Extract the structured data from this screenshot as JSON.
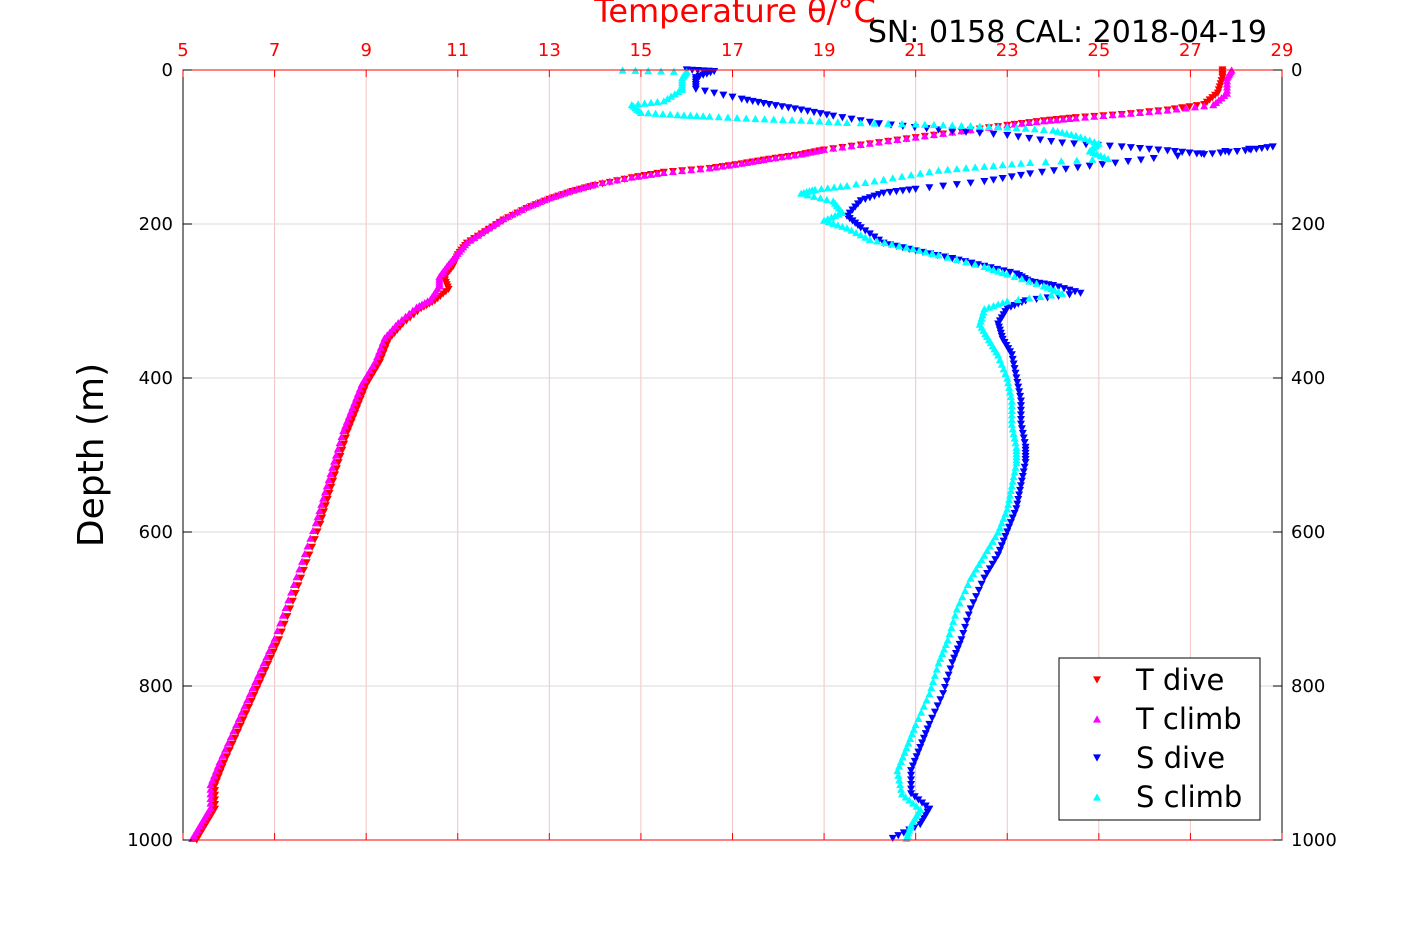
{
  "chart_data": {
    "type": "scatter",
    "title": "Temperature θ/°C",
    "subtitle": "SN: 0158  CAL: 2018-04-19",
    "xlabel": "Temperature θ/°C",
    "ylabel": "Depth (m)",
    "xlim": [
      5,
      29
    ],
    "ylim": [
      0,
      1000
    ],
    "xticks": [
      "5",
      "7",
      "9",
      "11",
      "13",
      "15",
      "17",
      "19",
      "21",
      "23",
      "25",
      "27",
      "29"
    ],
    "yticks": [
      "0",
      "200",
      "400",
      "600",
      "800",
      "1000"
    ],
    "grid": true,
    "legend_position": "bottom-right",
    "colors": {
      "axis_top": "#ff0000",
      "axis_frame": "#000000",
      "grid": "#d9d9d9",
      "grid_vertical": "#f2c4c4"
    },
    "series": [
      {
        "name": "T dive",
        "marker": "triangle-down",
        "color": "#ff0000",
        "points": [
          [
            27.7,
            0
          ],
          [
            27.7,
            10
          ],
          [
            27.6,
            30
          ],
          [
            27.3,
            45
          ],
          [
            26.5,
            52
          ],
          [
            25.5,
            58
          ],
          [
            24.5,
            62
          ],
          [
            23.8,
            66
          ],
          [
            23,
            72
          ],
          [
            22,
            80
          ],
          [
            21,
            88
          ],
          [
            20,
            96
          ],
          [
            19,
            104
          ],
          [
            18.5,
            110
          ],
          [
            17.8,
            116
          ],
          [
            17.2,
            122
          ],
          [
            16.5,
            128
          ],
          [
            15.5,
            133
          ],
          [
            14.8,
            140
          ],
          [
            14,
            150
          ],
          [
            13.5,
            158
          ],
          [
            13,
            168
          ],
          [
            12.5,
            180
          ],
          [
            12,
            195
          ],
          [
            11.6,
            210
          ],
          [
            11.2,
            225
          ],
          [
            11,
            240
          ],
          [
            10.9,
            255
          ],
          [
            10.7,
            270
          ],
          [
            10.8,
            285
          ],
          [
            10.5,
            300
          ],
          [
            10.2,
            310
          ],
          [
            9.8,
            330
          ],
          [
            9.5,
            350
          ],
          [
            9.3,
            380
          ],
          [
            9,
            410
          ],
          [
            8.8,
            440
          ],
          [
            8.6,
            470
          ],
          [
            8.4,
            510
          ],
          [
            8.2,
            550
          ],
          [
            8,
            590
          ],
          [
            7.7,
            640
          ],
          [
            7.4,
            690
          ],
          [
            7.1,
            740
          ],
          [
            6.8,
            780
          ],
          [
            6.5,
            820
          ],
          [
            6.2,
            860
          ],
          [
            5.9,
            900
          ],
          [
            5.7,
            930
          ],
          [
            5.7,
            960
          ],
          [
            5.5,
            980
          ],
          [
            5.3,
            1000
          ]
        ]
      },
      {
        "name": "T climb",
        "marker": "triangle-up",
        "color": "#ff00ff",
        "points": [
          [
            27.9,
            0
          ],
          [
            27.8,
            10
          ],
          [
            27.8,
            30
          ],
          [
            27.5,
            45
          ],
          [
            26.5,
            52
          ],
          [
            25.5,
            57
          ],
          [
            24.5,
            62
          ],
          [
            23.8,
            66
          ],
          [
            23,
            71
          ],
          [
            22,
            79
          ],
          [
            21,
            87
          ],
          [
            20,
            95
          ],
          [
            19,
            103
          ],
          [
            18.5,
            109
          ],
          [
            17.8,
            115
          ],
          [
            17.2,
            121
          ],
          [
            16.5,
            127
          ],
          [
            15.5,
            133
          ],
          [
            14.8,
            139
          ],
          [
            14,
            148
          ],
          [
            13.5,
            156
          ],
          [
            13,
            166
          ],
          [
            12.5,
            178
          ],
          [
            12,
            193
          ],
          [
            11.6,
            208
          ],
          [
            11.2,
            224
          ],
          [
            11,
            238
          ],
          [
            10.8,
            252
          ],
          [
            10.6,
            268
          ],
          [
            10.6,
            280
          ],
          [
            10.4,
            298
          ],
          [
            10.1,
            308
          ],
          [
            9.7,
            328
          ],
          [
            9.4,
            348
          ],
          [
            9.2,
            378
          ],
          [
            8.9,
            408
          ],
          [
            8.7,
            438
          ],
          [
            8.5,
            468
          ],
          [
            8.3,
            508
          ],
          [
            8.1,
            548
          ],
          [
            7.9,
            588
          ],
          [
            7.6,
            638
          ],
          [
            7.3,
            688
          ],
          [
            7,
            738
          ],
          [
            6.7,
            778
          ],
          [
            6.4,
            818
          ],
          [
            6.1,
            858
          ],
          [
            5.8,
            898
          ],
          [
            5.6,
            928
          ],
          [
            5.6,
            958
          ],
          [
            5.4,
            978
          ],
          [
            5.2,
            998
          ]
        ]
      },
      {
        "name": "S dive",
        "marker": "triangle-down",
        "color": "#0000ff",
        "points": [
          [
            16,
            0
          ],
          [
            16.6,
            2
          ],
          [
            16.2,
            10
          ],
          [
            16.2,
            25
          ],
          [
            17.2,
            38
          ],
          [
            17.8,
            45
          ],
          [
            18.5,
            52
          ],
          [
            19.2,
            60
          ],
          [
            20.2,
            70
          ],
          [
            21.5,
            78
          ],
          [
            23,
            85
          ],
          [
            24.2,
            95
          ],
          [
            25.5,
            100
          ],
          [
            26.5,
            105
          ],
          [
            27.3,
            110
          ],
          [
            28.2,
            105
          ],
          [
            28.8,
            100
          ],
          [
            26.2,
            115
          ],
          [
            24.8,
            125
          ],
          [
            23.5,
            135
          ],
          [
            22.5,
            145
          ],
          [
            21,
            155
          ],
          [
            20.3,
            160
          ],
          [
            19.8,
            170
          ],
          [
            19.5,
            190
          ],
          [
            19.8,
            205
          ],
          [
            20.3,
            225
          ],
          [
            21,
            235
          ],
          [
            21.8,
            245
          ],
          [
            22.5,
            255
          ],
          [
            23.2,
            265
          ],
          [
            23.5,
            275
          ],
          [
            24,
            280
          ],
          [
            24.6,
            290
          ],
          [
            23.4,
            300
          ],
          [
            23,
            310
          ],
          [
            22.8,
            330
          ],
          [
            22.9,
            350
          ],
          [
            23.1,
            370
          ],
          [
            23.2,
            400
          ],
          [
            23.3,
            430
          ],
          [
            23.3,
            460
          ],
          [
            23.4,
            490
          ],
          [
            23.4,
            510
          ],
          [
            23.3,
            540
          ],
          [
            23.2,
            570
          ],
          [
            23,
            600
          ],
          [
            22.8,
            630
          ],
          [
            22.5,
            660
          ],
          [
            22.2,
            700
          ],
          [
            22,
            740
          ],
          [
            21.8,
            770
          ],
          [
            21.6,
            810
          ],
          [
            21.3,
            850
          ],
          [
            21.1,
            880
          ],
          [
            20.9,
            910
          ],
          [
            20.9,
            940
          ],
          [
            21.3,
            960
          ],
          [
            21.1,
            980
          ],
          [
            20.5,
            998
          ]
        ]
      },
      {
        "name": "S climb",
        "marker": "triangle-up",
        "color": "#00ffff",
        "points": [
          [
            14.6,
            0
          ],
          [
            16,
            2
          ],
          [
            15.9,
            10
          ],
          [
            15.9,
            25
          ],
          [
            15.5,
            40
          ],
          [
            14.8,
            45
          ],
          [
            15,
            55
          ],
          [
            15.8,
            58
          ],
          [
            16.5,
            60
          ],
          [
            17.5,
            63
          ],
          [
            18.5,
            65
          ],
          [
            19.5,
            68
          ],
          [
            21,
            70
          ],
          [
            22,
            72
          ],
          [
            23,
            74
          ],
          [
            24,
            78
          ],
          [
            24.5,
            85
          ],
          [
            25,
            95
          ],
          [
            24.8,
            105
          ],
          [
            25.2,
            115
          ],
          [
            23.5,
            120
          ],
          [
            22.5,
            125
          ],
          [
            21.5,
            130
          ],
          [
            20.5,
            140
          ],
          [
            19.5,
            150
          ],
          [
            18.8,
            155
          ],
          [
            18.5,
            160
          ],
          [
            19.2,
            170
          ],
          [
            19.4,
            185
          ],
          [
            19,
            195
          ],
          [
            19.5,
            205
          ],
          [
            20,
            220
          ],
          [
            20.8,
            230
          ],
          [
            21.5,
            240
          ],
          [
            22.5,
            255
          ],
          [
            23,
            265
          ],
          [
            23.8,
            280
          ],
          [
            24.2,
            290
          ],
          [
            23,
            300
          ],
          [
            22.5,
            310
          ],
          [
            22.4,
            330
          ],
          [
            22.6,
            350
          ],
          [
            22.8,
            370
          ],
          [
            23,
            400
          ],
          [
            23.1,
            430
          ],
          [
            23.1,
            460
          ],
          [
            23.2,
            490
          ],
          [
            23.2,
            510
          ],
          [
            23.1,
            540
          ],
          [
            23,
            570
          ],
          [
            22.8,
            600
          ],
          [
            22.5,
            630
          ],
          [
            22.2,
            660
          ],
          [
            21.9,
            700
          ],
          [
            21.7,
            740
          ],
          [
            21.5,
            770
          ],
          [
            21.3,
            810
          ],
          [
            21,
            850
          ],
          [
            20.8,
            880
          ],
          [
            20.6,
            910
          ],
          [
            20.7,
            940
          ],
          [
            21.1,
            960
          ],
          [
            20.9,
            980
          ],
          [
            20.8,
            998
          ]
        ]
      }
    ]
  }
}
